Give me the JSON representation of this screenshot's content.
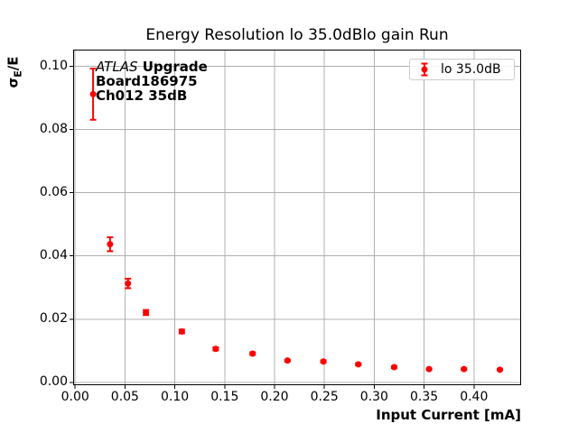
{
  "figure": {
    "title": "Energy Resolution lo 35.0dBlo gain Run"
  },
  "axes": {
    "xlabel": "Input Current [mA]",
    "ylabel_sigma": "σ",
    "ylabel_sub": "E",
    "ylabel_rest": "/E"
  },
  "annotation": {
    "experiment": "ATLAS",
    "experiment_suffix": " Upgrade",
    "board": "Board186975",
    "channel": "Ch012 35dB"
  },
  "legend": {
    "label": "lo 35.0dB"
  },
  "colors": {
    "series": "#ff0000",
    "grid": "#b0b0b0",
    "spine": "#000000",
    "legend_border": "#cccccc",
    "text": "#000000"
  },
  "chart_data": {
    "type": "scatter",
    "title": "Energy Resolution lo 35.0dBlo gain Run",
    "xlabel": "Input Current [mA]",
    "ylabel": "σ_E/E",
    "grid": true,
    "legend_position": "upper right",
    "xlim": [
      -0.002,
      0.4473
    ],
    "ylim": [
      -0.0009,
      0.1053
    ],
    "xticks": [
      0.0,
      0.05,
      0.1,
      0.15,
      0.2,
      0.25,
      0.3,
      0.35,
      0.4
    ],
    "xtick_labels": [
      "0.00",
      "0.05",
      "0.10",
      "0.15",
      "0.20",
      "0.25",
      "0.30",
      "0.35",
      "0.40"
    ],
    "yticks": [
      0.0,
      0.02,
      0.04,
      0.06,
      0.08,
      0.1
    ],
    "ytick_labels": [
      "0.00",
      "0.02",
      "0.04",
      "0.06",
      "0.08",
      "0.10"
    ],
    "series": [
      {
        "name": "lo 35.0dB",
        "color": "#ff0000",
        "marker": "circle-with-errorbars",
        "x": [
          0.018,
          0.035,
          0.053,
          0.071,
          0.107,
          0.141,
          0.178,
          0.213,
          0.249,
          0.284,
          0.32,
          0.355,
          0.39,
          0.426
        ],
        "y": [
          0.0912,
          0.0437,
          0.0313,
          0.0221,
          0.0161,
          0.0106,
          0.0091,
          0.0069,
          0.0066,
          0.0057,
          0.0048,
          0.0042,
          0.0042,
          0.004
        ],
        "yerr": [
          0.0081,
          0.0022,
          0.0015,
          0.0008,
          0.0006,
          0.0005,
          0.0004,
          0.0003,
          0.0003,
          0.0003,
          0.0003,
          0.0002,
          0.0002,
          0.0002
        ]
      }
    ]
  }
}
